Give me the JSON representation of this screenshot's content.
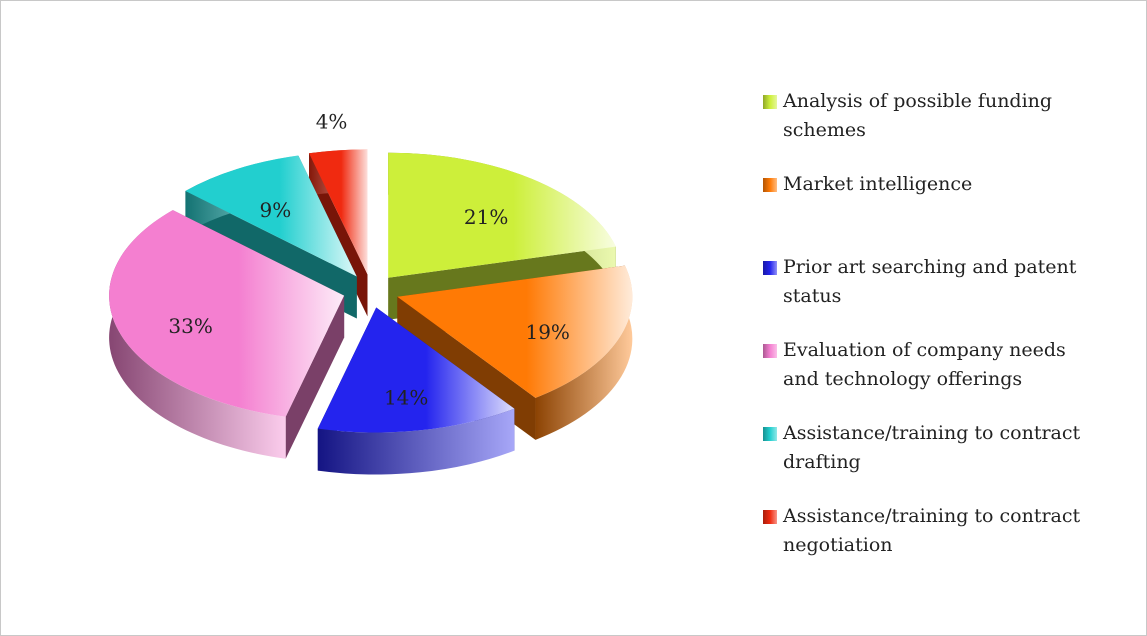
{
  "chart_data": {
    "type": "pie3d",
    "categories": [
      "Analysis of possible funding schemes",
      "Market intelligence",
      "Prior art searching and patent status",
      "Evaluation of company needs and technology offerings",
      "Assistance/training to contract drafting",
      "Assistance/training to contract negotiation"
    ],
    "values": [
      21,
      19,
      14,
      33,
      9,
      4
    ],
    "value_labels": [
      "21%",
      "19%",
      "14%",
      "33%",
      "9%",
      "4%"
    ],
    "colors": [
      "#cdef3a",
      "#ff7a05",
      "#2424ee",
      "#f47fd0",
      "#22cfcf",
      "#f02a10"
    ],
    "legend": "right"
  }
}
